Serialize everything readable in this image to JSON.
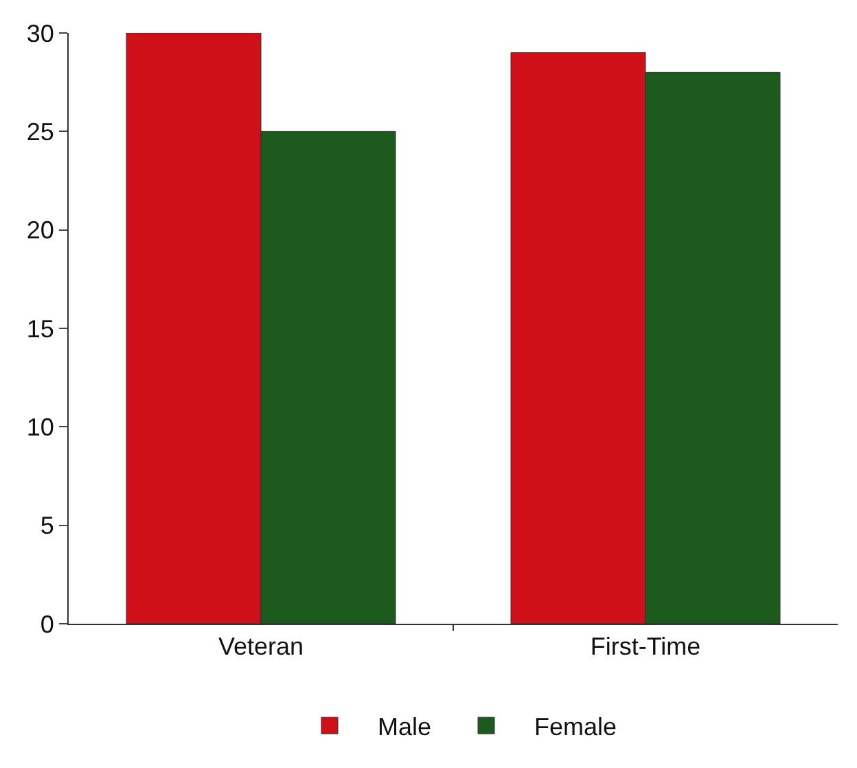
{
  "chart_data": {
    "type": "bar",
    "categories": [
      "Veteran",
      "First-Time"
    ],
    "series": [
      {
        "name": "Male",
        "color": "#d01018",
        "values": [
          30,
          29
        ]
      },
      {
        "name": "Female",
        "color": "#1d5a1d",
        "values": [
          25,
          28
        ]
      }
    ],
    "ylim": [
      0,
      30
    ],
    "yticks": [
      0,
      5,
      10,
      15,
      20,
      25,
      30
    ],
    "legend": "bottom"
  }
}
